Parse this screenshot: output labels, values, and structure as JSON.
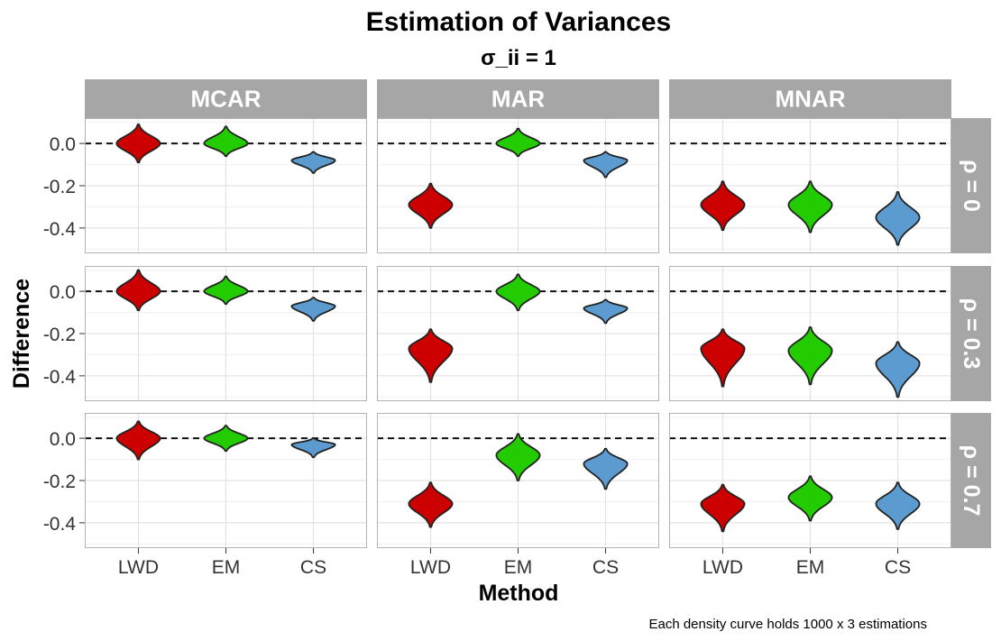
{
  "colors": {
    "LWD": "#cc0000",
    "EM": "#22cc00",
    "CS": "#5b9bcf",
    "strip_bg": "#a6a6a6",
    "outline": "#222222",
    "grid": "#e3e3e3",
    "panel_border": "#b3b3b3"
  },
  "chart_data": {
    "type": "violin",
    "title": "Estimation of Variances",
    "subtitle": "σ_ii = 1",
    "xlabel": "Method",
    "ylabel": "Difference",
    "caption": "Each density curve holds 1000 x 3 estimations",
    "categories": [
      "LWD",
      "EM",
      "CS"
    ],
    "col_facets": [
      "MCAR",
      "MAR",
      "MNAR"
    ],
    "row_facets": [
      "ρ = 0",
      "ρ = 0.3",
      "ρ = 0.7"
    ],
    "ylim": [
      -0.52,
      0.12
    ],
    "yticks": [
      0.0,
      -0.2,
      -0.4
    ],
    "ytick_labels": [
      "0.0",
      "-0.2",
      "-0.4"
    ],
    "reference_line": 0.0,
    "grid": true,
    "legend": "none",
    "panels": [
      {
        "col": "MCAR",
        "row": "ρ = 0",
        "violins": [
          {
            "method": "LWD",
            "center": 0.0,
            "min": -0.09,
            "max": 0.09
          },
          {
            "method": "EM",
            "center": 0.0,
            "min": -0.06,
            "max": 0.08
          },
          {
            "method": "CS",
            "center": -0.08,
            "min": -0.14,
            "max": -0.04
          }
        ]
      },
      {
        "col": "MAR",
        "row": "ρ = 0",
        "violins": [
          {
            "method": "LWD",
            "center": -0.29,
            "min": -0.4,
            "max": -0.19
          },
          {
            "method": "EM",
            "center": 0.0,
            "min": -0.06,
            "max": 0.07
          },
          {
            "method": "CS",
            "center": -0.08,
            "min": -0.16,
            "max": -0.04
          }
        ]
      },
      {
        "col": "MNAR",
        "row": "ρ = 0",
        "violins": [
          {
            "method": "LWD",
            "center": -0.29,
            "min": -0.41,
            "max": -0.18
          },
          {
            "method": "EM",
            "center": -0.29,
            "min": -0.42,
            "max": -0.18
          },
          {
            "method": "CS",
            "center": -0.35,
            "min": -0.48,
            "max": -0.23
          }
        ]
      },
      {
        "col": "MCAR",
        "row": "ρ = 0.3",
        "violins": [
          {
            "method": "LWD",
            "center": 0.0,
            "min": -0.09,
            "max": 0.1
          },
          {
            "method": "EM",
            "center": 0.0,
            "min": -0.06,
            "max": 0.07
          },
          {
            "method": "CS",
            "center": -0.07,
            "min": -0.14,
            "max": -0.03
          }
        ]
      },
      {
        "col": "MAR",
        "row": "ρ = 0.3",
        "violins": [
          {
            "method": "LWD",
            "center": -0.27,
            "min": -0.43,
            "max": -0.18
          },
          {
            "method": "EM",
            "center": 0.0,
            "min": -0.09,
            "max": 0.08
          },
          {
            "method": "CS",
            "center": -0.08,
            "min": -0.15,
            "max": -0.04
          }
        ]
      },
      {
        "col": "MNAR",
        "row": "ρ = 0.3",
        "violins": [
          {
            "method": "LWD",
            "center": -0.27,
            "min": -0.45,
            "max": -0.18
          },
          {
            "method": "EM",
            "center": -0.28,
            "min": -0.44,
            "max": -0.17
          },
          {
            "method": "CS",
            "center": -0.34,
            "min": -0.5,
            "max": -0.24
          }
        ]
      },
      {
        "col": "MCAR",
        "row": "ρ = 0.7",
        "violins": [
          {
            "method": "LWD",
            "center": 0.0,
            "min": -0.1,
            "max": 0.08
          },
          {
            "method": "EM",
            "center": 0.0,
            "min": -0.06,
            "max": 0.06
          },
          {
            "method": "CS",
            "center": -0.03,
            "min": -0.09,
            "max": 0.0
          }
        ]
      },
      {
        "col": "MAR",
        "row": "ρ = 0.7",
        "violins": [
          {
            "method": "LWD",
            "center": -0.31,
            "min": -0.42,
            "max": -0.21
          },
          {
            "method": "EM",
            "center": -0.08,
            "min": -0.2,
            "max": 0.02
          },
          {
            "method": "CS",
            "center": -0.12,
            "min": -0.24,
            "max": -0.05
          }
        ]
      },
      {
        "col": "MNAR",
        "row": "ρ = 0.7",
        "violins": [
          {
            "method": "LWD",
            "center": -0.31,
            "min": -0.44,
            "max": -0.22
          },
          {
            "method": "EM",
            "center": -0.28,
            "min": -0.39,
            "max": -0.18
          },
          {
            "method": "CS",
            "center": -0.31,
            "min": -0.43,
            "max": -0.21
          }
        ]
      }
    ]
  }
}
